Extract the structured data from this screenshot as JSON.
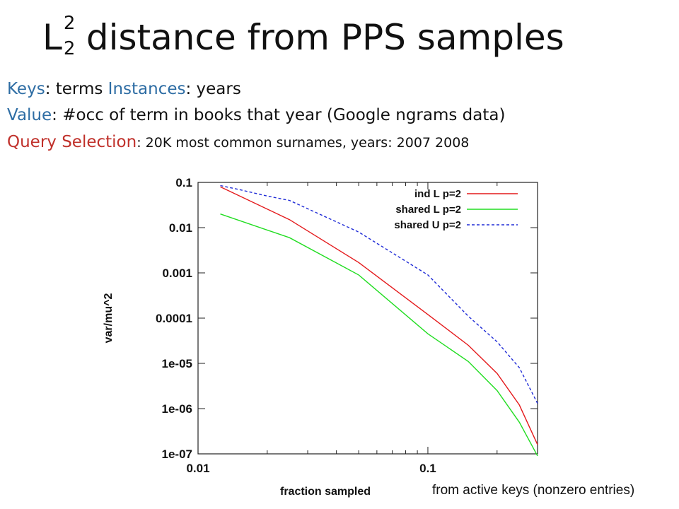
{
  "slide": {
    "title_symbol": "L",
    "title_superscript": "2",
    "title_subscript": "2",
    "title_rest": "distance from PPS samples",
    "keys_label": "Keys",
    "keys_sep": ": terms",
    "instances_label": "Instances",
    "instances_sep": ": years",
    "value_label": "Value",
    "value_text": ": #occ of term in books that year (Google ngrams data)",
    "query_label": "Query Selection",
    "query_text": ": 20K most common surnames, years: 2007 2008",
    "footnote": "from active keys (nonzero entries)"
  },
  "colors": {
    "ind_L": "#e41a1c",
    "shared_L": "#22dd22",
    "shared_U": "#1f2bd6",
    "blue_label": "#2e6da4",
    "red_label": "#c0312b"
  },
  "chart_data": {
    "type": "line",
    "xlabel": "fraction sampled",
    "ylabel": "var/mu^2",
    "xscale": "log",
    "yscale": "log",
    "xlim": [
      0.01,
      0.3
    ],
    "ylim": [
      1e-07,
      0.1
    ],
    "x_tick_labels": [
      {
        "value": 0.01,
        "label": "0.01"
      },
      {
        "value": 0.1,
        "label": "0.1"
      }
    ],
    "y_tick_labels": [
      {
        "value": 0.1,
        "label": "0.1"
      },
      {
        "value": 0.01,
        "label": "0.01"
      },
      {
        "value": 0.001,
        "label": "0.001"
      },
      {
        "value": 0.0001,
        "label": "0.0001"
      },
      {
        "value": 1e-05,
        "label": "1e-05"
      },
      {
        "value": 1e-06,
        "label": "1e-06"
      },
      {
        "value": 1e-07,
        "label": "1e-07"
      }
    ],
    "legend_position": "top-right",
    "series": [
      {
        "name": "ind L p=2",
        "style": "solid",
        "x": [
          0.0125,
          0.025,
          0.05,
          0.1,
          0.15,
          0.2,
          0.25,
          0.3
        ],
        "y": [
          0.08,
          0.015,
          0.0017,
          0.00012,
          2.5e-05,
          6e-06,
          1.2e-06,
          1.6e-07
        ]
      },
      {
        "name": "shared L p=2",
        "style": "solid",
        "x": [
          0.0125,
          0.025,
          0.05,
          0.1,
          0.15,
          0.2,
          0.25,
          0.3
        ],
        "y": [
          0.02,
          0.006,
          0.0009,
          4.5e-05,
          1.1e-05,
          2.5e-06,
          5e-07,
          9e-08
        ]
      },
      {
        "name": "shared U p=2",
        "style": "dashed",
        "x": [
          0.0125,
          0.015,
          0.02,
          0.025,
          0.05,
          0.1,
          0.15,
          0.2,
          0.25,
          0.3
        ],
        "y": [
          0.085,
          0.07,
          0.05,
          0.04,
          0.008,
          0.0009,
          0.00011,
          3e-05,
          8e-06,
          1.3e-06
        ]
      }
    ]
  }
}
